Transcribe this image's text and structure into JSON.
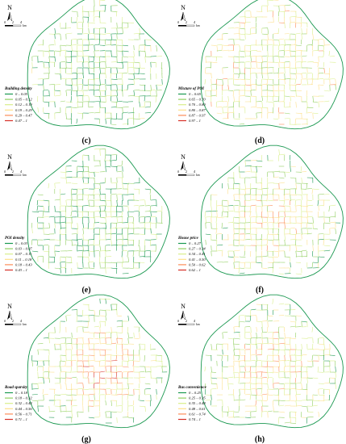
{
  "north": "N",
  "scale_labels": [
    "0",
    "2",
    "4",
    "km"
  ],
  "colors": [
    "#1a9850",
    "#91cf60",
    "#d9ef8b",
    "#fee08b",
    "#fc8d59",
    "#d73027"
  ],
  "panels": [
    {
      "label": "(c)",
      "legend_title": "Building density",
      "legend": [
        "0 – 0.05",
        "0.05 – 0.12",
        "0.12 – 0.19",
        "0.19 – 0.29",
        "0.29 – 0.47",
        "0.47 – 1"
      ]
    },
    {
      "label": "(d)",
      "legend_title": "Mixture of POI",
      "legend": [
        "0 – 0.65",
        "0.65 – 0.70",
        "0.70 – 0.80",
        "0.80 – 0.87",
        "0.87 – 0.97",
        "0.97 – 1"
      ]
    },
    {
      "label": "(e)",
      "legend_title": "POI density",
      "legend": [
        "0 – 0.03",
        "0.03 – 0.07",
        "0.07 – 0.11",
        "0.11 – 0.18",
        "0.18 – 0.43",
        "0.43 – 1"
      ]
    },
    {
      "label": "(f)",
      "legend_title": "House price",
      "legend": [
        "0 – 0.27",
        "0.27 – 0.34",
        "0.34 – 0.41",
        "0.41 – 0.50",
        "0.50 – 0.62",
        "0.62 – 1"
      ]
    },
    {
      "label": "(g)",
      "legend_title": "Road sparsity",
      "legend": [
        "0 – 0.18",
        "0.18 – 0.32",
        "0.32 – 0.44",
        "0.44 – 0.56",
        "0.56 – 0.71",
        "0.71 – 1"
      ]
    },
    {
      "label": "(h)",
      "legend_title": "Bus convenience",
      "legend": [
        "0 – 0.25",
        "0.25 – 0.35",
        "0.35 – 0.48",
        "0.48 – 0.61",
        "0.61 – 0.74",
        "0.74 – 1"
      ]
    }
  ]
}
